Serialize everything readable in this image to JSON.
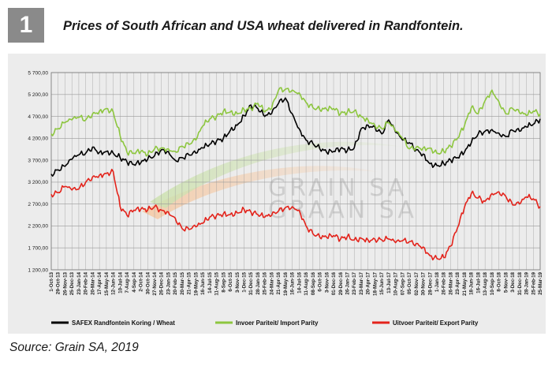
{
  "figure": {
    "number": "1",
    "title": "Prices of South African and USA wheat delivered in Randfontein."
  },
  "source": "Source: Grain SA, 2019",
  "watermark": {
    "line1": "GRAIN SA",
    "line2": "GRAAN SA"
  },
  "colors": {
    "safex": "#000000",
    "import": "#8dc63f",
    "export": "#e3231b",
    "grid": "#9a9a9a"
  },
  "chart_data": {
    "type": "line",
    "ylim": [
      1200,
      5700
    ],
    "yticks": [
      "5 700,00",
      "5 200,00",
      "4 700,00",
      "4 200,00",
      "3 700,00",
      "3 200,00",
      "2 700,00",
      "2 200,00",
      "1 700,00",
      "1 200,00"
    ],
    "x": [
      "1-Oct-13",
      "29-Oct-13",
      "26-Nov-13",
      "25-Dec-13",
      "23-Jan-14",
      "20-Feb-14",
      "20-Mar-14",
      "17-Apr-14",
      "15-May-14",
      "12-Jun-14",
      "10-Jul-14",
      "7-Aug-14",
      "4-Sep-14",
      "2-Oct-14",
      "30-Oct-14",
      "27-Nov-14",
      "26-Dec-14",
      "23-Jan-15",
      "20-Feb-15",
      "20-Mar-15",
      "21-Apr-15",
      "19-May-15",
      "16-Jun-15",
      "14-Jul-15",
      "11-Aug-15",
      "8-Sep-15",
      "6-Oct-15",
      "3-Nov-15",
      "1-Dec-15",
      "31-Dec-15",
      "28-Jan-16",
      "25-Feb-16",
      "24-Mar-16",
      "21-Apr-16",
      "19-May-16",
      "16-Jun-16",
      "14-Jul-16",
      "11-Aug-16",
      "08-Sep-16",
      "6-Oct-16",
      "3-Nov-16",
      "01-Dec-16",
      "29-Dec-16",
      "26-Jan-17",
      "23-Feb-17",
      "23-Mar-17",
      "20-Apr-17",
      "18-May-17",
      "15-Jun-17",
      "13-Jul-17",
      "10-Aug-17",
      "07-Sep-17",
      "05-Oct-17",
      "02-Nov-17",
      "30-Nov-17",
      "28-Dec-17",
      "1-Jan-18",
      "26-Feb-18",
      "26-Mar-18",
      "23-Apr-18",
      "21-May-18",
      "18-Jun-18",
      "16-Jul-18",
      "13-Aug-18",
      "10-Sep-18",
      "8-Oct-18",
      "5-Nov-18",
      "3-Dec-18",
      "31-Dec-18",
      "28-Jan-19",
      "25-Feb-19",
      "25-Mar-19"
    ],
    "series": [
      {
        "name": "SAFEX  Randfontein Koring / Wheat",
        "color": "#000000",
        "values": [
          3380,
          3480,
          3560,
          3720,
          3820,
          3860,
          4000,
          3880,
          3900,
          3860,
          3760,
          3660,
          3600,
          3640,
          3720,
          3800,
          3940,
          3900,
          3700,
          3760,
          3820,
          3860,
          3980,
          4060,
          4140,
          4200,
          4380,
          4500,
          4720,
          4960,
          4880,
          4700,
          4760,
          5000,
          5120,
          4760,
          4420,
          4160,
          4080,
          3960,
          3880,
          3900,
          3960,
          3920,
          3980,
          4420,
          4500,
          4460,
          4300,
          4620,
          4340,
          4160,
          4100,
          3940,
          3840,
          3620,
          3580,
          3620,
          3700,
          3760,
          3880,
          4100,
          4300,
          4360,
          4400,
          4320,
          4240,
          4380,
          4360,
          4460,
          4520,
          4640
        ]
      },
      {
        "name": "Invoer Pariteit/ Import Parity",
        "color": "#8dc63f",
        "values": [
          4300,
          4420,
          4560,
          4620,
          4680,
          4620,
          4760,
          4820,
          4880,
          4800,
          4260,
          3880,
          3860,
          3900,
          3820,
          3960,
          3980,
          3960,
          3900,
          4020,
          4060,
          4160,
          4480,
          4640,
          4700,
          4820,
          4800,
          4760,
          4860,
          4880,
          5000,
          4800,
          4880,
          5300,
          5320,
          5300,
          5240,
          5020,
          4900,
          4850,
          4860,
          4880,
          4760,
          4800,
          4820,
          4700,
          4620,
          4500,
          4420,
          4560,
          4360,
          4200,
          3960,
          4000,
          3980,
          3980,
          3860,
          3900,
          4020,
          4200,
          4480,
          4900,
          4760,
          5060,
          5300,
          5040,
          4760,
          4880,
          4780,
          4720,
          4820,
          4760
        ]
      },
      {
        "name": "Uitvoer Pariteit/ Export Parity",
        "color": "#e3231b",
        "values": [
          2920,
          2960,
          3100,
          3020,
          3040,
          3200,
          3320,
          3360,
          3400,
          3440,
          2640,
          2440,
          2560,
          2580,
          2560,
          2640,
          2560,
          2520,
          2380,
          2140,
          2120,
          2180,
          2260,
          2400,
          2440,
          2480,
          2460,
          2500,
          2580,
          2520,
          2460,
          2400,
          2440,
          2540,
          2620,
          2640,
          2560,
          2200,
          2020,
          1940,
          1940,
          1980,
          1900,
          1960,
          1880,
          1920,
          1880,
          1900,
          1880,
          1900,
          1820,
          1860,
          1840,
          1800,
          1720,
          1520,
          1460,
          1480,
          1740,
          2160,
          2620,
          2940,
          2840,
          2760,
          2940,
          2980,
          2880,
          2680,
          2700,
          2860,
          2820,
          2640
        ]
      }
    ]
  }
}
